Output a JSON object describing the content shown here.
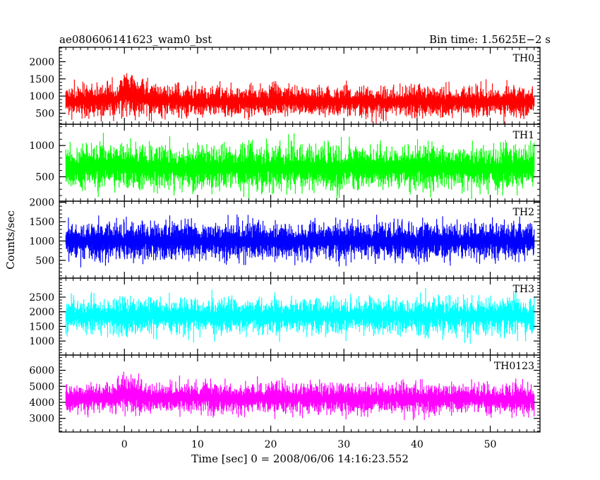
{
  "header": {
    "title": "ae080606141623_wam0_bst",
    "bin_time": "Bin time: 1.5625E−2 s"
  },
  "chart_data": {
    "type": "line",
    "ylabel": "Counts/sec",
    "xlabel": "Time [sec] 0 = 2008/06/06 14:16:23.552",
    "xlim": [
      -8.9,
      56.8
    ],
    "x_data_range": [
      -8.0,
      56.0
    ],
    "x_ticks": [
      0,
      10,
      20,
      30,
      40,
      50
    ],
    "x_tick_labels": [
      "0",
      "10",
      "20",
      "30",
      "40",
      "50"
    ],
    "panels": [
      {
        "name": "TH0",
        "color": "#ff0000",
        "ylim": [
          180,
          2420
        ],
        "y_ticks": [
          500,
          1000,
          1500,
          2000
        ],
        "y_tick_labels": [
          "500",
          "1000",
          "1500",
          "2000"
        ],
        "profile": [
          {
            "x": -8.0,
            "mean": 850,
            "spread": 330
          },
          {
            "x": -1.0,
            "mean": 900,
            "spread": 360
          },
          {
            "x": 0.0,
            "mean": 1150,
            "spread": 480
          },
          {
            "x": 1.0,
            "mean": 1050,
            "spread": 430
          },
          {
            "x": 3.0,
            "mean": 900,
            "spread": 360
          },
          {
            "x": 10.0,
            "mean": 850,
            "spread": 330
          },
          {
            "x": 56.0,
            "mean": 840,
            "spread": 330
          }
        ]
      },
      {
        "name": "TH1",
        "color": "#00ff00",
        "ylim": [
          110,
          1340
        ],
        "y_ticks": [
          500,
          1000
        ],
        "y_tick_labels": [
          "500",
          "1000"
        ],
        "profile": [
          {
            "x": -8.0,
            "mean": 640,
            "spread": 260
          },
          {
            "x": 0.0,
            "mean": 690,
            "spread": 290
          },
          {
            "x": 2.0,
            "mean": 650,
            "spread": 270
          },
          {
            "x": 56.0,
            "mean": 640,
            "spread": 260
          }
        ]
      },
      {
        "name": "TH2",
        "color": "#0000ff",
        "ylim": [
          40,
          2030
        ],
        "y_ticks": [
          500,
          1000,
          1500,
          2000
        ],
        "y_tick_labels": [
          "500",
          "1000",
          "1500",
          "2000"
        ],
        "profile": [
          {
            "x": -8.0,
            "mean": 1000,
            "spread": 360
          },
          {
            "x": 56.0,
            "mean": 1000,
            "spread": 360
          }
        ]
      },
      {
        "name": "TH3",
        "color": "#00ffff",
        "ylim": [
          520,
          3150
        ],
        "y_ticks": [
          1000,
          1500,
          2000,
          2500
        ],
        "y_tick_labels": [
          "1000",
          "1500",
          "2000",
          "2500"
        ],
        "profile": [
          {
            "x": -8.0,
            "mean": 1850,
            "spread": 460
          },
          {
            "x": 56.0,
            "mean": 1850,
            "spread": 460
          }
        ]
      },
      {
        "name": "TH0123",
        "color": "#ff00ff",
        "ylim": [
          2150,
          6950
        ],
        "y_ticks": [
          3000,
          4000,
          5000,
          6000
        ],
        "y_tick_labels": [
          "3000",
          "4000",
          "5000",
          "6000"
        ],
        "profile": [
          {
            "x": -8.0,
            "mean": 4200,
            "spread": 700
          },
          {
            "x": -1.0,
            "mean": 4350,
            "spread": 760
          },
          {
            "x": 0.0,
            "mean": 4700,
            "spread": 900
          },
          {
            "x": 1.0,
            "mean": 4500,
            "spread": 820
          },
          {
            "x": 3.0,
            "mean": 4300,
            "spread": 720
          },
          {
            "x": 56.0,
            "mean": 4200,
            "spread": 700
          }
        ]
      }
    ]
  }
}
